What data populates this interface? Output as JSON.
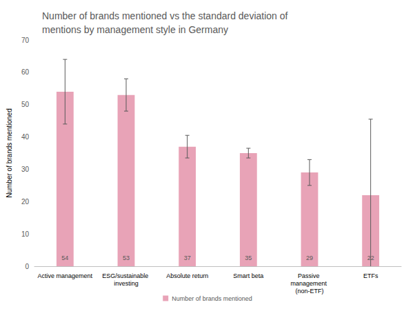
{
  "chart_data": {
    "type": "bar",
    "title": "Number of brands mentioned vs the standard deviation of mentions by management style in Germany",
    "y_label": "Number of brands mentioned",
    "categories": [
      "Active management",
      "ESG/sustainable investing",
      "Absolute return",
      "Smart beta",
      "Passive management (non-ETF)",
      "ETFs"
    ],
    "series": [
      {
        "name": "Number of brands mentioned",
        "color": "#e8a3b7",
        "values": [
          54,
          53,
          37,
          35,
          29,
          22
        ],
        "errors": [
          10,
          5,
          3.5,
          1.5,
          4,
          23.5
        ]
      }
    ],
    "ylim": [
      0,
      70
    ],
    "yticks": [
      0,
      10,
      20,
      30,
      40,
      50,
      60,
      70
    ],
    "grid": false,
    "legend": "bottom",
    "data_labels": true
  }
}
